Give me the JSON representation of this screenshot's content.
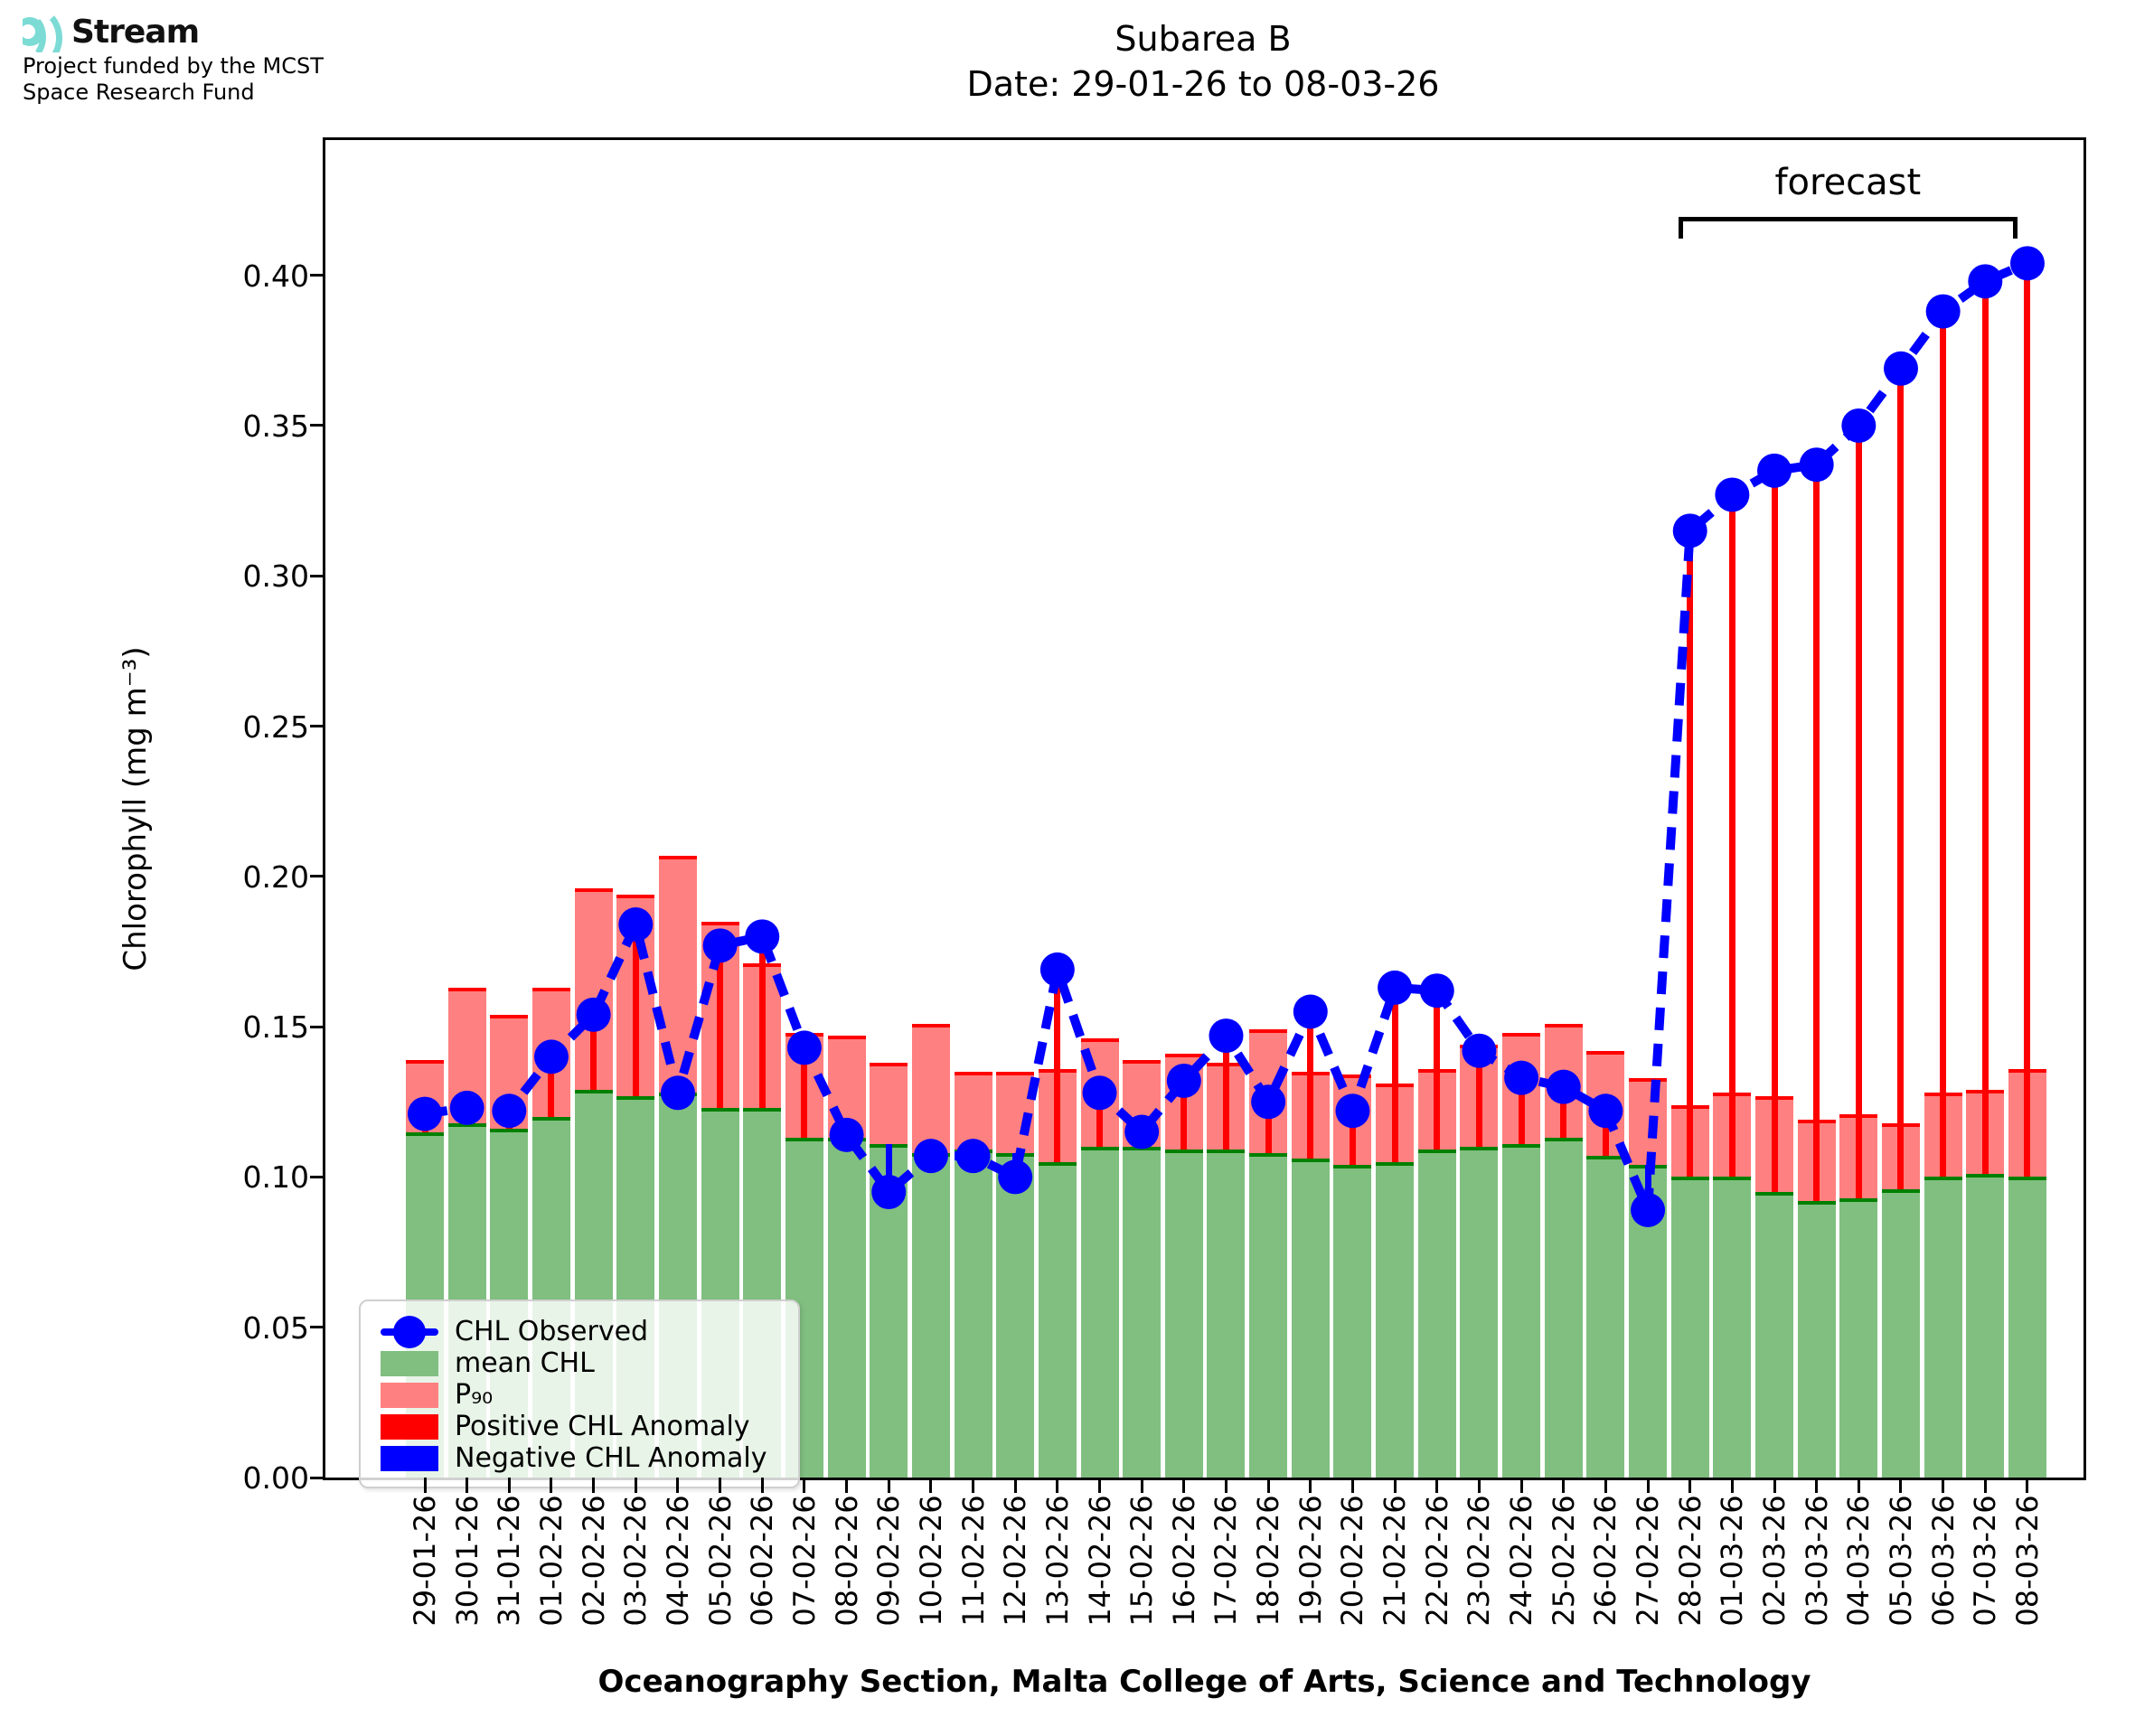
{
  "logo": {
    "brand": "Stream",
    "subtitle_line1": "Project funded by the MCST",
    "subtitle_line2": "Space Research Fund",
    "icon_color": "#7CDBD5"
  },
  "title": {
    "line1": "Subarea B",
    "line2": "Date: 29-01-26 to 08-03-26"
  },
  "axes": {
    "y_label": "Chlorophyll (mg m⁻³)",
    "x_label": "Oceanography Section, Malta College of Arts, Science and Technology",
    "y_ticks": [
      "0.00",
      "0.05",
      "0.10",
      "0.15",
      "0.20",
      "0.25",
      "0.30",
      "0.35",
      "0.40"
    ]
  },
  "forecast": {
    "label": "forecast"
  },
  "legend": {
    "items": [
      {
        "label": "CHL Observed",
        "kind": "line-dot",
        "color": "#0000FF"
      },
      {
        "label": "mean CHL",
        "kind": "patch",
        "color": "#80BF80"
      },
      {
        "label": "P₉₀",
        "kind": "patch",
        "color": "#FF8080"
      },
      {
        "label": "Positive CHL Anomaly",
        "kind": "patch",
        "color": "#FF0000"
      },
      {
        "label": "Negative CHL Anomaly",
        "kind": "patch",
        "color": "#0000FF"
      }
    ]
  },
  "colors": {
    "observed": "#0000FF",
    "mean_fill": "#80BF80",
    "mean_edge": "#008000",
    "p90_fill": "#FF8080",
    "p90_edge": "#FF0000",
    "positive_anomaly": "#FF0000",
    "negative_anomaly": "#0000FF"
  },
  "chart_data": {
    "type": "bar",
    "title": "Subarea B  Date: 29-01-26 to 08-03-26",
    "xlabel": "Oceanography Section, Malta College of Arts, Science and Technology",
    "ylabel": "Chlorophyll (mg m⁻³)",
    "ylim": [
      0,
      0.445
    ],
    "grid": false,
    "legend_position": "lower-left",
    "forecast_start_index": 30,
    "categories": [
      "29-01-26",
      "30-01-26",
      "31-01-26",
      "01-02-26",
      "02-02-26",
      "03-02-26",
      "04-02-26",
      "05-02-26",
      "06-02-26",
      "07-02-26",
      "08-02-26",
      "09-02-26",
      "10-02-26",
      "11-02-26",
      "12-02-26",
      "13-02-26",
      "14-02-26",
      "15-02-26",
      "16-02-26",
      "17-02-26",
      "18-02-26",
      "19-02-26",
      "20-02-26",
      "21-02-26",
      "22-02-26",
      "23-02-26",
      "24-02-26",
      "25-02-26",
      "26-02-26",
      "27-02-26",
      "28-02-26",
      "01-03-26",
      "02-03-26",
      "03-03-26",
      "04-03-26",
      "05-03-26",
      "06-03-26",
      "07-03-26",
      "08-03-26"
    ],
    "series": [
      {
        "name": "mean CHL",
        "type": "bar",
        "values": [
          0.115,
          0.118,
          0.116,
          0.12,
          0.129,
          0.127,
          0.128,
          0.123,
          0.123,
          0.113,
          0.113,
          0.111,
          0.108,
          0.109,
          0.108,
          0.105,
          0.11,
          0.11,
          0.109,
          0.109,
          0.108,
          0.106,
          0.104,
          0.105,
          0.109,
          0.11,
          0.111,
          0.113,
          0.107,
          0.104,
          0.1,
          0.1,
          0.095,
          0.092,
          0.093,
          0.096,
          0.1,
          0.101,
          0.1
        ]
      },
      {
        "name": "P90",
        "type": "bar",
        "values": [
          0.139,
          0.163,
          0.154,
          0.163,
          0.196,
          0.194,
          0.207,
          0.185,
          0.171,
          0.148,
          0.147,
          0.138,
          0.151,
          0.135,
          0.135,
          0.136,
          0.146,
          0.139,
          0.141,
          0.138,
          0.149,
          0.135,
          0.134,
          0.131,
          0.136,
          0.144,
          0.148,
          0.151,
          0.142,
          0.133,
          0.124,
          0.128,
          0.127,
          0.119,
          0.121,
          0.118,
          0.128,
          0.129,
          0.136
        ]
      },
      {
        "name": "CHL Observed",
        "type": "line",
        "values": [
          0.121,
          0.123,
          0.122,
          0.14,
          0.154,
          0.184,
          0.128,
          0.177,
          0.18,
          0.143,
          0.114,
          0.095,
          0.107,
          0.107,
          0.1,
          0.169,
          0.128,
          0.115,
          0.132,
          0.147,
          0.125,
          0.155,
          0.122,
          0.163,
          0.162,
          0.142,
          0.133,
          0.13,
          0.122,
          0.089,
          0.315,
          0.327,
          0.335,
          0.337,
          0.35,
          0.369,
          0.388,
          0.398,
          0.404
        ]
      }
    ]
  }
}
